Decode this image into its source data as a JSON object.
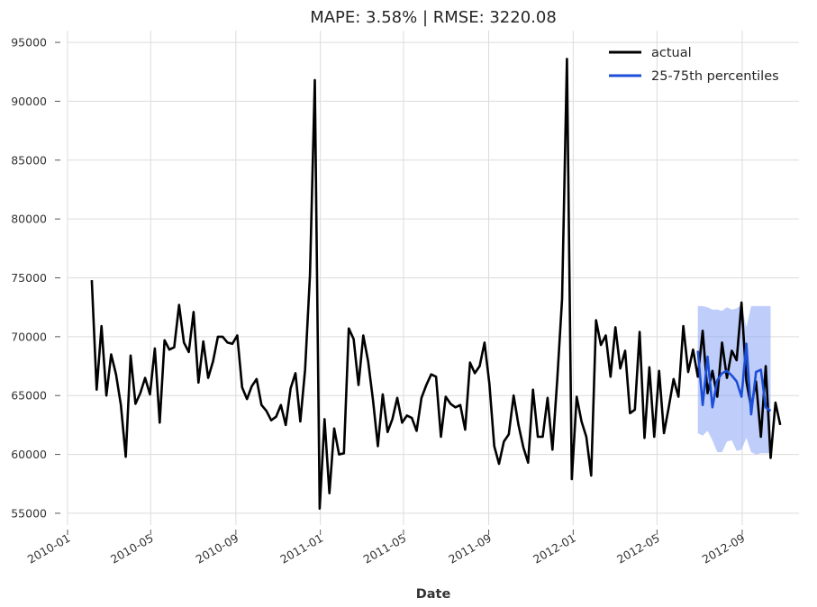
{
  "chart_data": {
    "type": "line",
    "title": "MAPE: 3.58% | RMSE: 3220.08",
    "xlabel": "Date",
    "ylabel": "",
    "xlim": [
      "2010-01-01",
      "2012-11-22"
    ],
    "ylim": [
      54000,
      96000
    ],
    "x_ticks": [
      "2010-01",
      "2010-05",
      "2010-09",
      "2011-01",
      "2011-05",
      "2011-09",
      "2012-01",
      "2012-05",
      "2012-09"
    ],
    "y_ticks": [
      55000,
      60000,
      65000,
      70000,
      75000,
      80000,
      85000,
      90000,
      95000
    ],
    "grid": true,
    "legend_position": "top-right",
    "series": [
      {
        "name": "actual",
        "color": "#000000",
        "start_date": "2010-02-05",
        "frequency": "weekly",
        "values": [
          74800,
          65500,
          70900,
          65000,
          68500,
          66800,
          64200,
          59800,
          68400,
          64300,
          65200,
          66500,
          65100,
          69000,
          62700,
          69700,
          68900,
          69100,
          72700,
          69500,
          68700,
          72100,
          66100,
          69600,
          66500,
          67900,
          70000,
          70000,
          69500,
          69400,
          70100,
          65700,
          64700,
          65800,
          66400,
          64200,
          63700,
          62900,
          63200,
          64200,
          62500,
          65600,
          66900,
          62800,
          67200,
          75200,
          91800,
          55400,
          63000,
          56700,
          62200,
          60000,
          60100,
          70700,
          69800,
          65900,
          70100,
          67900,
          64600,
          60700,
          65100,
          61900,
          63000,
          64800,
          62700,
          63300,
          63100,
          62000,
          64800,
          65900,
          66800,
          66600,
          61500,
          64900,
          64300,
          64000,
          64200,
          62100,
          67800,
          66900,
          67500,
          69500,
          66000,
          60700,
          59200,
          61100,
          61700,
          65000,
          62500,
          60600,
          59300,
          65500,
          61500,
          61500,
          64800,
          60400,
          66300,
          73200,
          93600,
          57900,
          64900,
          62800,
          61500,
          58200,
          71400,
          69300,
          70100,
          66600,
          70800,
          67300,
          68800,
          63500,
          63800,
          70400,
          61400,
          67400,
          61500,
          67100,
          61800,
          64000,
          66400,
          64900,
          70900,
          67000,
          68900,
          66600,
          70500,
          65200,
          67100,
          64900,
          69500,
          66500,
          68800,
          68000,
          72900,
          66200,
          64000,
          66200,
          61500,
          67500,
          59700,
          64400,
          62500
        ]
      },
      {
        "name": "25-75th percentiles",
        "color": "#1c4fd8",
        "band_color": "#7f9cf5",
        "start_date": "2012-06-29",
        "frequency": "weekly",
        "median": [
          68800,
          64200,
          68300,
          64000,
          66300,
          66900,
          67100,
          66700,
          66200,
          64900,
          69400,
          63400,
          67000,
          67200,
          64000,
          63700
        ],
        "upper": [
          72600,
          72600,
          72500,
          72300,
          72300,
          72200,
          72500,
          72300,
          72400,
          72700,
          70800,
          72600,
          72600,
          72600,
          72600,
          72600
        ],
        "lower": [
          61800,
          61600,
          62000,
          61200,
          60200,
          60200,
          61100,
          61200,
          60300,
          60400,
          61400,
          60200,
          60000,
          60100,
          60100,
          60100
        ]
      }
    ]
  }
}
